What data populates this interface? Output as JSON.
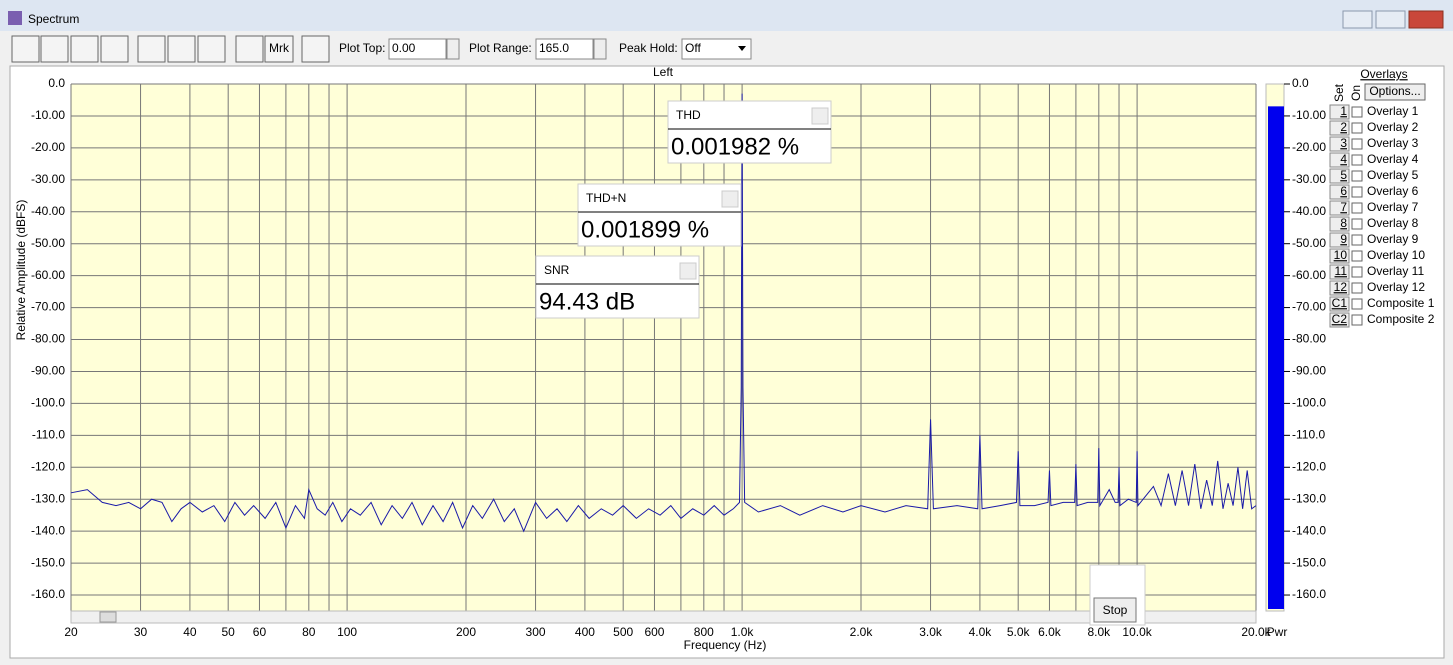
{
  "window": {
    "title": "Spectrum"
  },
  "toolbar": {
    "marker_button": "Mrk",
    "plot_top_label": "Plot Top:",
    "plot_top_value": "0.00",
    "plot_range_label": "Plot Range:",
    "plot_range_value": "165.0",
    "peak_hold_label": "Peak Hold:",
    "peak_hold_value": "Off"
  },
  "chart_data": {
    "type": "line",
    "title": "Left",
    "x_label": "Frequency (Hz)",
    "y_label": "Relative Amplitude (dBFS)",
    "log_x": true,
    "grid": true,
    "color": "#1a1aa8",
    "xlim": [
      20,
      20000
    ],
    "ylim": [
      -165,
      0
    ],
    "xticks": [
      20,
      30,
      40,
      50,
      60,
      80,
      100,
      200,
      300,
      400,
      500,
      600,
      800,
      {
        "value": 1000,
        "label": "1.0k"
      },
      {
        "value": 2000,
        "label": "2.0k"
      },
      {
        "value": 3000,
        "label": "3.0k"
      },
      {
        "value": 4000,
        "label": "4.0k"
      },
      {
        "value": 5000,
        "label": "5.0k"
      },
      {
        "value": 6000,
        "label": "6.0k"
      },
      {
        "value": 8000,
        "label": "8.0k"
      },
      {
        "value": 10000,
        "label": "10.0k"
      },
      {
        "value": 20000,
        "label": "20.0k"
      }
    ],
    "xgrid_minor": [
      70,
      90,
      700,
      900,
      7000,
      9000
    ],
    "yticks": [
      {
        "value": 0,
        "label": "0.0"
      },
      {
        "value": -10,
        "label": "-10.00"
      },
      {
        "value": -20,
        "label": "-20.00"
      },
      {
        "value": -30,
        "label": "-30.00"
      },
      {
        "value": -40,
        "label": "-40.00"
      },
      {
        "value": -50,
        "label": "-50.00"
      },
      {
        "value": -60,
        "label": "-60.00"
      },
      {
        "value": -70,
        "label": "-70.00"
      },
      {
        "value": -80,
        "label": "-80.00"
      },
      {
        "value": -90,
        "label": "-90.00"
      },
      {
        "value": -100,
        "label": "-100.0"
      },
      {
        "value": -110,
        "label": "-110.0"
      },
      {
        "value": -120,
        "label": "-120.0"
      },
      {
        "value": -130,
        "label": "-130.0"
      },
      {
        "value": -140,
        "label": "-140.0"
      },
      {
        "value": -150,
        "label": "-150.0"
      },
      {
        "value": -160,
        "label": "-160.0"
      }
    ],
    "x": [
      20,
      22,
      24,
      26,
      28,
      30,
      32,
      34,
      36,
      38,
      40,
      43,
      46,
      49,
      52,
      55,
      58,
      62,
      66,
      70,
      74,
      78,
      80,
      84,
      88,
      92,
      97,
      102,
      108,
      115,
      122,
      130,
      138,
      146,
      155,
      165,
      175,
      185,
      196,
      208,
      220,
      235,
      250,
      265,
      280,
      300,
      320,
      340,
      360,
      385,
      410,
      440,
      470,
      500,
      540,
      580,
      620,
      660,
      700,
      750,
      800,
      850,
      900,
      950,
      985,
      995,
      1000,
      1005,
      1015,
      1100,
      1250,
      1400,
      1600,
      1800,
      2000,
      2300,
      2600,
      2950,
      3000,
      3050,
      3500,
      3950,
      4000,
      4050,
      4500,
      4950,
      5000,
      5050,
      5500,
      5950,
      6000,
      6050,
      6500,
      6950,
      7000,
      7050,
      7500,
      7950,
      8000,
      8050,
      8500,
      8800,
      8950,
      9000,
      9050,
      9500,
      9950,
      10000,
      10050,
      11000,
      11500,
      12000,
      12500,
      13000,
      13500,
      14000,
      14500,
      15000,
      15500,
      16000,
      16500,
      17000,
      17500,
      18000,
      18500,
      19000,
      19500,
      20000
    ],
    "values": [
      -128,
      -127,
      -131,
      -132,
      -131,
      -133,
      -130,
      -131,
      -137,
      -133,
      -131,
      -134,
      -132,
      -137,
      -131,
      -135,
      -132,
      -136,
      -131,
      -139,
      -132,
      -136,
      -127,
      -133,
      -135,
      -131,
      -137,
      -133,
      -135,
      -131,
      -138,
      -132,
      -136,
      -131,
      -138,
      -132,
      -137,
      -131,
      -139,
      -132,
      -136,
      -130,
      -137,
      -133,
      -140,
      -131,
      -136,
      -133,
      -137,
      -132,
      -136,
      -133,
      -135,
      -132,
      -136,
      -133,
      -135,
      -132,
      -136,
      -133,
      -135,
      -132,
      -135,
      -133,
      -131,
      -95,
      -3,
      -95,
      -131,
      -134,
      -132,
      -135,
      -132,
      -134,
      -132,
      -134,
      -132,
      -133,
      -105,
      -133,
      -132,
      -133,
      -110,
      -133,
      -132,
      -131,
      -115,
      -132,
      -132,
      -131,
      -121,
      -132,
      -131,
      -131,
      -119,
      -132,
      -131,
      -131,
      -114,
      -132,
      -127,
      -131,
      -131,
      -120,
      -132,
      -130,
      -131,
      -115,
      -132,
      -126,
      -132,
      -122,
      -132,
      -121,
      -132,
      -119,
      -133,
      -124,
      -132,
      -118,
      -133,
      -125,
      -132,
      -120,
      -133,
      -121,
      -133,
      -132
    ],
    "meter": {
      "label": "Pwr",
      "value": -7,
      "color": "#0000ee"
    }
  },
  "readouts": [
    {
      "label": "THD",
      "value": "0.001982 %"
    },
    {
      "label": "THD+N",
      "value": "0.001899 %"
    },
    {
      "label": "SNR",
      "value": "94.43 dB"
    }
  ],
  "overlays": {
    "title": "Overlays",
    "options_button": "Options...",
    "set_header": "Set",
    "on_header": "On",
    "items": [
      {
        "set": "1",
        "name": "Overlay 1",
        "color": "#229922"
      },
      {
        "set": "2",
        "name": "Overlay 2",
        "color": "#22a0a8"
      },
      {
        "set": "3",
        "name": "Overlay 3",
        "color": "#992299"
      },
      {
        "set": "4",
        "name": "Overlay 4",
        "color": "#e020e0"
      },
      {
        "set": "5",
        "name": "Overlay 5",
        "color": "#8a5a1a"
      },
      {
        "set": "6",
        "name": "Overlay 6",
        "color": "#e08060"
      },
      {
        "set": "7",
        "name": "Overlay 7",
        "color": "#50dd50"
      },
      {
        "set": "8",
        "name": "Overlay 8",
        "color": "#80ccee"
      },
      {
        "set": "9",
        "name": "Overlay 9",
        "color": "#e0c030"
      },
      {
        "set": "10",
        "name": "Overlay 10",
        "color": "#f0a0f0"
      },
      {
        "set": "11",
        "name": "Overlay 11",
        "color": "#808020"
      },
      {
        "set": "12",
        "name": "Overlay 12",
        "color": "#e0a040"
      },
      {
        "set": "C1",
        "name": "Composite 1",
        "color": "#000000"
      },
      {
        "set": "C2",
        "name": "Composite 2",
        "color": "#888888"
      }
    ]
  },
  "stop_button": "Stop"
}
